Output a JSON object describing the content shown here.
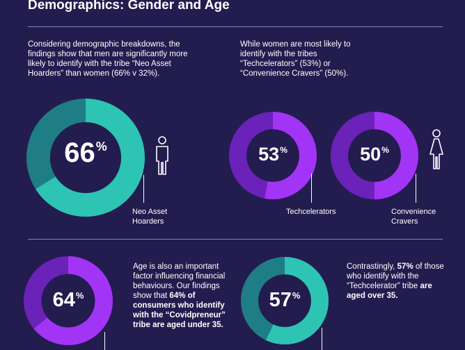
{
  "header": {
    "title": "Demographics: Gender and Age"
  },
  "intro_left": {
    "text": "Considering demographic breakdowns, the findings show that men are significantly more likely to identify with the tribe “Neo Asset Hoarders” than women (66% v 32%)."
  },
  "intro_right": {
    "text": "While women are most likely to identify with the tribes “Techcelerators” (53%) or “Convenience Cravers” (50%)."
  },
  "stats": [
    {
      "value": "66",
      "unit": "%",
      "fraction": 0.66,
      "label": "Neo Asset Hoarders",
      "color": "#2dc4b3",
      "track": "#1f7d86",
      "icon": "man-icon"
    },
    {
      "value": "53",
      "unit": "%",
      "fraction": 0.53,
      "label": "Techcelerators",
      "color": "#a234f5",
      "track": "#6b22b8",
      "icon": ""
    },
    {
      "value": "50",
      "unit": "%",
      "fraction": 0.5,
      "label": "Convenience Cravers",
      "color": "#a234f5",
      "track": "#6b22b8",
      "icon": "woman-icon"
    },
    {
      "value": "64",
      "unit": "%",
      "fraction": 0.64,
      "label": "",
      "color": "#a234f5",
      "track": "#6b22b8",
      "icon": ""
    },
    {
      "value": "57",
      "unit": "%",
      "fraction": 0.57,
      "label": "",
      "color": "#2dc4b3",
      "track": "#1f7d86",
      "icon": ""
    }
  ],
  "age_left": {
    "line1": "Age is also an important factor influencing financial behaviours. Our findings show that ",
    "bold": "64% of consumers who identify with the",
    "line2": " “Covidpreneur” tribe are aged under 35."
  },
  "age_right": {
    "pre": "Contrastingly, ",
    "bold1": "57%",
    "mid": " of those who identify with the “Techcelerator” tribe ",
    "bold2": "are aged over 35."
  },
  "colors": {
    "background": "#231c4f",
    "teal": "#2dc4b3",
    "purple": "#a234f5"
  }
}
